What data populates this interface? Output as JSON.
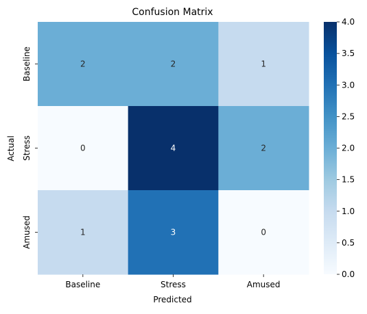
{
  "chart_data": {
    "type": "heatmap",
    "title": "Confusion Matrix",
    "xlabel": "Predicted",
    "ylabel": "Actual",
    "x_categories": [
      "Baseline",
      "Stress",
      "Amused"
    ],
    "y_categories": [
      "Baseline",
      "Stress",
      "Amused"
    ],
    "matrix": [
      [
        2,
        2,
        1
      ],
      [
        0,
        4,
        2
      ],
      [
        1,
        3,
        0
      ]
    ],
    "colormap": "Blues",
    "colorbar": {
      "min": 0.0,
      "max": 4.0,
      "ticks": [
        "0.0",
        "0.5",
        "1.0",
        "1.5",
        "2.0",
        "2.5",
        "3.0",
        "3.5",
        "4.0"
      ]
    }
  }
}
